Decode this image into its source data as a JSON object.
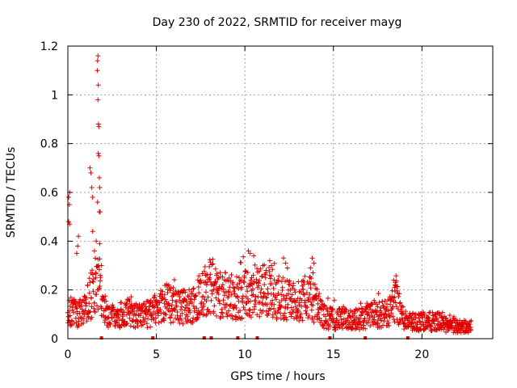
{
  "chart_data": {
    "type": "scatter",
    "title": "Day 230 of 2022, SRMTID for receiver mayg",
    "xlabel": "GPS time / hours",
    "ylabel": "SRMTID / TECUs",
    "xlim": [
      0,
      24
    ],
    "ylim": [
      0,
      1.2
    ],
    "xticks": [
      0,
      5,
      10,
      15,
      20
    ],
    "xtick_labels": [
      "0",
      "5",
      "10",
      "15",
      "20"
    ],
    "yticks": [
      0,
      0.2,
      0.4,
      0.6,
      0.8,
      1.0,
      1.2
    ],
    "ytick_labels": [
      "0",
      "0.2",
      "0.4",
      "0.6",
      "0.8",
      "1",
      "1.2"
    ],
    "grid": true,
    "marker": "+",
    "series_color": "#e00000",
    "bottom_markers_x": [
      1.9,
      4.8,
      7.7,
      8.1,
      9.6,
      10.7,
      14.8,
      16.8,
      19.2
    ],
    "trend": [
      [
        0.0,
        0.1
      ],
      [
        0.3,
        0.12
      ],
      [
        0.6,
        0.1
      ],
      [
        1.0,
        0.12
      ],
      [
        1.3,
        0.18
      ],
      [
        1.7,
        0.22
      ],
      [
        2.0,
        0.12
      ],
      [
        2.5,
        0.09
      ],
      [
        3.0,
        0.1
      ],
      [
        3.5,
        0.11
      ],
      [
        4.0,
        0.09
      ],
      [
        4.5,
        0.1
      ],
      [
        5.0,
        0.12
      ],
      [
        5.5,
        0.15
      ],
      [
        6.0,
        0.14
      ],
      [
        6.5,
        0.13
      ],
      [
        7.0,
        0.14
      ],
      [
        7.5,
        0.19
      ],
      [
        8.0,
        0.21
      ],
      [
        8.5,
        0.19
      ],
      [
        9.0,
        0.18
      ],
      [
        9.5,
        0.17
      ],
      [
        10.0,
        0.18
      ],
      [
        10.5,
        0.18
      ],
      [
        11.0,
        0.2
      ],
      [
        11.5,
        0.19
      ],
      [
        12.0,
        0.17
      ],
      [
        12.5,
        0.16
      ],
      [
        13.0,
        0.15
      ],
      [
        13.5,
        0.18
      ],
      [
        14.0,
        0.14
      ],
      [
        14.5,
        0.09
      ],
      [
        15.0,
        0.08
      ],
      [
        15.5,
        0.08
      ],
      [
        16.0,
        0.08
      ],
      [
        16.5,
        0.08
      ],
      [
        17.0,
        0.09
      ],
      [
        17.5,
        0.1
      ],
      [
        18.0,
        0.1
      ],
      [
        18.5,
        0.15
      ],
      [
        19.0,
        0.08
      ],
      [
        19.5,
        0.07
      ],
      [
        20.0,
        0.07
      ],
      [
        20.5,
        0.07
      ],
      [
        21.0,
        0.07
      ],
      [
        21.5,
        0.05
      ],
      [
        22.0,
        0.05
      ],
      [
        22.5,
        0.05
      ],
      [
        22.8,
        0.05
      ]
    ],
    "spikes": [
      {
        "x": 0.05,
        "y": 0.58
      },
      {
        "x": 0.1,
        "y": 0.6
      },
      {
        "x": 0.08,
        "y": 0.55
      },
      {
        "x": 0.05,
        "y": 0.48
      },
      {
        "x": 0.1,
        "y": 0.47
      },
      {
        "x": 0.6,
        "y": 0.42
      },
      {
        "x": 0.55,
        "y": 0.38
      },
      {
        "x": 0.5,
        "y": 0.35
      },
      {
        "x": 1.25,
        "y": 0.7
      },
      {
        "x": 1.3,
        "y": 0.68
      },
      {
        "x": 1.35,
        "y": 0.62
      },
      {
        "x": 1.4,
        "y": 0.58
      },
      {
        "x": 1.7,
        "y": 1.16
      },
      {
        "x": 1.68,
        "y": 1.14
      },
      {
        "x": 1.66,
        "y": 1.1
      },
      {
        "x": 1.72,
        "y": 1.04
      },
      {
        "x": 1.7,
        "y": 0.98
      },
      {
        "x": 1.73,
        "y": 0.88
      },
      {
        "x": 1.75,
        "y": 0.87
      },
      {
        "x": 1.72,
        "y": 0.76
      },
      {
        "x": 1.75,
        "y": 0.75
      },
      {
        "x": 1.78,
        "y": 0.66
      },
      {
        "x": 1.8,
        "y": 0.62
      },
      {
        "x": 1.68,
        "y": 0.56
      },
      {
        "x": 1.78,
        "y": 0.52
      },
      {
        "x": 1.82,
        "y": 0.52
      },
      {
        "x": 1.4,
        "y": 0.44
      },
      {
        "x": 1.6,
        "y": 0.4
      },
      {
        "x": 1.8,
        "y": 0.39
      },
      {
        "x": 1.5,
        "y": 0.36
      },
      {
        "x": 1.55,
        "y": 0.33
      },
      {
        "x": 1.9,
        "y": 0.3
      },
      {
        "x": 10.2,
        "y": 0.36
      },
      {
        "x": 10.3,
        "y": 0.35
      },
      {
        "x": 10.5,
        "y": 0.34
      },
      {
        "x": 11.4,
        "y": 0.32
      },
      {
        "x": 11.5,
        "y": 0.3
      },
      {
        "x": 11.2,
        "y": 0.28
      },
      {
        "x": 12.3,
        "y": 0.31
      },
      {
        "x": 12.4,
        "y": 0.29
      },
      {
        "x": 13.8,
        "y": 0.33
      },
      {
        "x": 13.9,
        "y": 0.31
      },
      {
        "x": 13.7,
        "y": 0.29
      },
      {
        "x": 13.85,
        "y": 0.27
      },
      {
        "x": 18.4,
        "y": 0.24
      },
      {
        "x": 18.5,
        "y": 0.23
      },
      {
        "x": 18.45,
        "y": 0.21
      },
      {
        "x": 7.8,
        "y": 0.26
      },
      {
        "x": 8.0,
        "y": 0.25
      },
      {
        "x": 8.4,
        "y": 0.26
      },
      {
        "x": 9.8,
        "y": 0.24
      }
    ]
  }
}
